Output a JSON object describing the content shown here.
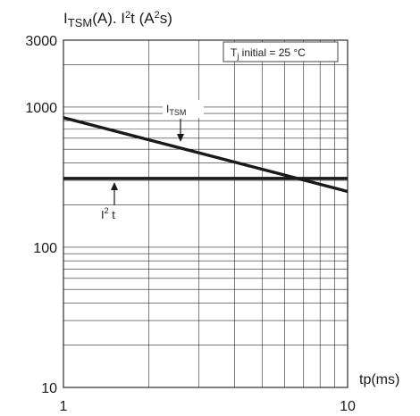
{
  "chart_data": {
    "type": "line",
    "title": {
      "i": "I",
      "tsm": "TSM",
      "rest": "(A). I",
      "sup": "2",
      "tail": "t (A",
      "sup2": "2",
      "end": "s)"
    },
    "xlabel": "tp(ms)",
    "xscale": "log",
    "yscale": "log",
    "xlim": [
      1,
      10
    ],
    "ylim": [
      10,
      3000
    ],
    "x_tick_labels": [
      "1",
      "10"
    ],
    "y_tick_labels": [
      "3000",
      "1000",
      "100",
      "10"
    ],
    "y_tick_values": [
      3000,
      1000,
      100,
      10
    ],
    "grid": true,
    "series": [
      {
        "name": "ITSM",
        "x": [
          1,
          10
        ],
        "y": [
          840,
          250
        ]
      },
      {
        "name": "I2t",
        "x": [
          1,
          10
        ],
        "y": [
          310,
          310
        ]
      }
    ],
    "labels": {
      "itsm": {
        "main": "I",
        "sub": "TSM"
      },
      "i2t": {
        "main": "I",
        "sup": "2",
        "tail": " t"
      }
    },
    "condition": {
      "t": "T",
      "sub": "j",
      "text": " initial = 25 °C"
    }
  }
}
